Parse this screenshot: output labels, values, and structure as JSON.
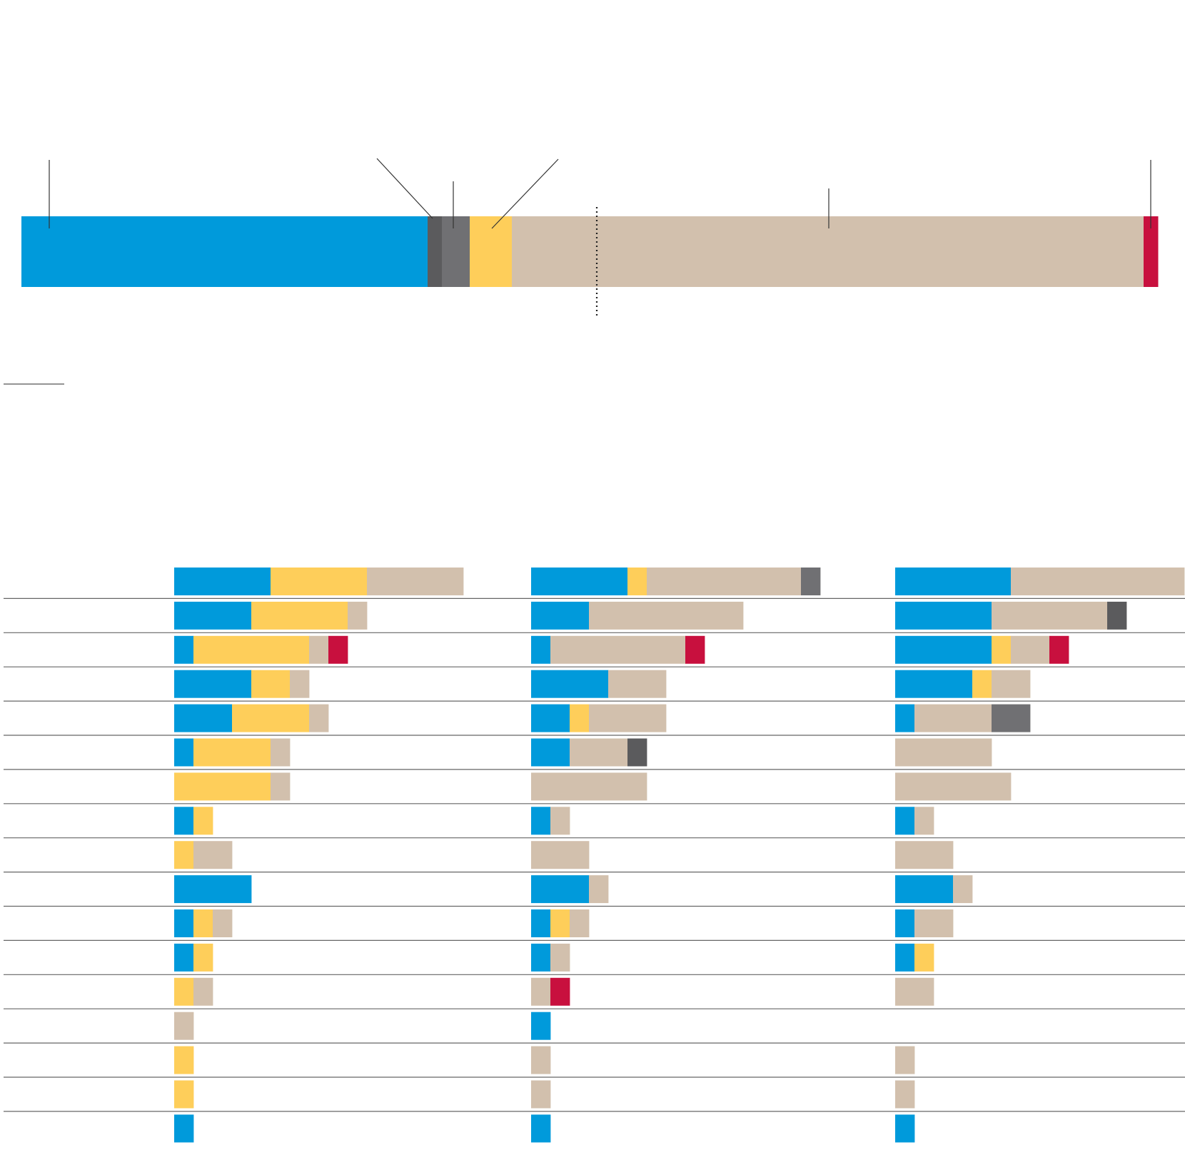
{
  "colors": {
    "blue": "#009ADB",
    "dark_gray": "#5B5B5D",
    "gray": "#707073",
    "yellow": "#FECE5A",
    "beige": "#D2C0AD",
    "red": "#C8103E",
    "rule": "#555555",
    "annotation_line": "#333333"
  },
  "chart_data": [
    {
      "type": "bar",
      "orientation": "horizontal",
      "stacked": true,
      "segments": [
        {
          "color": "blue",
          "value": 569
        },
        {
          "color": "dark_gray",
          "value": 20
        },
        {
          "color": "gray",
          "value": 39
        },
        {
          "color": "yellow",
          "value": 59
        },
        {
          "color": "beige",
          "value": 885
        },
        {
          "color": "red",
          "value": 20
        }
      ],
      "marker_value": 806,
      "callout_segments": [
        "blue",
        "dark_gray",
        "gray",
        "yellow",
        "beige",
        "red"
      ]
    },
    {
      "type": "bar",
      "orientation": "horizontal",
      "stacked": true,
      "unit_size": 1,
      "panels": [
        {
          "rows": [
            [
              [
                "blue",
                5
              ],
              [
                "yellow",
                5
              ],
              [
                "beige",
                5
              ]
            ],
            [
              [
                "blue",
                4
              ],
              [
                "yellow",
                5
              ],
              [
                "beige",
                1
              ]
            ],
            [
              [
                "blue",
                1
              ],
              [
                "yellow",
                6
              ],
              [
                "beige",
                1
              ],
              [
                "red",
                1
              ]
            ],
            [
              [
                "blue",
                4
              ],
              [
                "yellow",
                2
              ],
              [
                "beige",
                1
              ]
            ],
            [
              [
                "blue",
                3
              ],
              [
                "yellow",
                4
              ],
              [
                "beige",
                1
              ]
            ],
            [
              [
                "blue",
                1
              ],
              [
                "yellow",
                4
              ],
              [
                "beige",
                1
              ]
            ],
            [
              [
                "yellow",
                5
              ],
              [
                "beige",
                1
              ]
            ],
            [
              [
                "blue",
                1
              ],
              [
                "yellow",
                1
              ]
            ],
            [
              [
                "yellow",
                1
              ],
              [
                "beige",
                2
              ]
            ],
            [
              [
                "blue",
                4
              ]
            ],
            [
              [
                "blue",
                1
              ],
              [
                "yellow",
                1
              ],
              [
                "beige",
                1
              ]
            ],
            [
              [
                "blue",
                1
              ],
              [
                "yellow",
                1
              ]
            ],
            [
              [
                "yellow",
                1
              ],
              [
                "beige",
                1
              ]
            ],
            [
              [
                "beige",
                1
              ]
            ],
            [
              [
                "yellow",
                1
              ]
            ],
            [
              [
                "yellow",
                1
              ]
            ],
            [
              [
                "blue",
                1
              ]
            ]
          ]
        },
        {
          "rows": [
            [
              [
                "blue",
                5
              ],
              [
                "yellow",
                1
              ],
              [
                "beige",
                8
              ],
              [
                "gray",
                1
              ]
            ],
            [
              [
                "blue",
                3
              ],
              [
                "beige",
                8
              ]
            ],
            [
              [
                "blue",
                1
              ],
              [
                "beige",
                7
              ],
              [
                "red",
                1
              ]
            ],
            [
              [
                "blue",
                4
              ],
              [
                "beige",
                3
              ]
            ],
            [
              [
                "blue",
                2
              ],
              [
                "yellow",
                1
              ],
              [
                "beige",
                4
              ]
            ],
            [
              [
                "blue",
                2
              ],
              [
                "beige",
                3
              ],
              [
                "dark_gray",
                1
              ]
            ],
            [
              [
                "beige",
                6
              ]
            ],
            [
              [
                "blue",
                1
              ],
              [
                "beige",
                1
              ]
            ],
            [
              [
                "beige",
                3
              ]
            ],
            [
              [
                "blue",
                3
              ],
              [
                "beige",
                1
              ]
            ],
            [
              [
                "blue",
                1
              ],
              [
                "yellow",
                1
              ],
              [
                "beige",
                1
              ]
            ],
            [
              [
                "blue",
                1
              ],
              [
                "beige",
                1
              ]
            ],
            [
              [
                "beige",
                1
              ],
              [
                "red",
                1
              ]
            ],
            [
              [
                "blue",
                1
              ]
            ],
            [
              [
                "beige",
                1
              ]
            ],
            [
              [
                "beige",
                1
              ]
            ],
            [
              [
                "blue",
                1
              ]
            ]
          ]
        },
        {
          "rows": [
            [
              [
                "blue",
                6
              ],
              [
                "beige",
                9
              ]
            ],
            [
              [
                "blue",
                5
              ],
              [
                "beige",
                6
              ],
              [
                "dark_gray",
                1
              ]
            ],
            [
              [
                "blue",
                5
              ],
              [
                "yellow",
                1
              ],
              [
                "beige",
                2
              ],
              [
                "red",
                1
              ]
            ],
            [
              [
                "blue",
                4
              ],
              [
                "yellow",
                1
              ],
              [
                "beige",
                2
              ]
            ],
            [
              [
                "blue",
                1
              ],
              [
                "beige",
                4
              ],
              [
                "gray",
                2
              ]
            ],
            [
              [
                "beige",
                5
              ]
            ],
            [
              [
                "beige",
                6
              ]
            ],
            [
              [
                "blue",
                1
              ],
              [
                "beige",
                1
              ]
            ],
            [
              [
                "beige",
                3
              ]
            ],
            [
              [
                "blue",
                3
              ],
              [
                "beige",
                1
              ]
            ],
            [
              [
                "blue",
                1
              ],
              [
                "beige",
                2
              ]
            ],
            [
              [
                "blue",
                1
              ],
              [
                "yellow",
                1
              ]
            ],
            [
              [
                "beige",
                2
              ]
            ],
            [],
            [
              [
                "beige",
                1
              ]
            ],
            [
              [
                "beige",
                1
              ]
            ],
            [
              [
                "blue",
                1
              ]
            ]
          ]
        }
      ]
    }
  ]
}
